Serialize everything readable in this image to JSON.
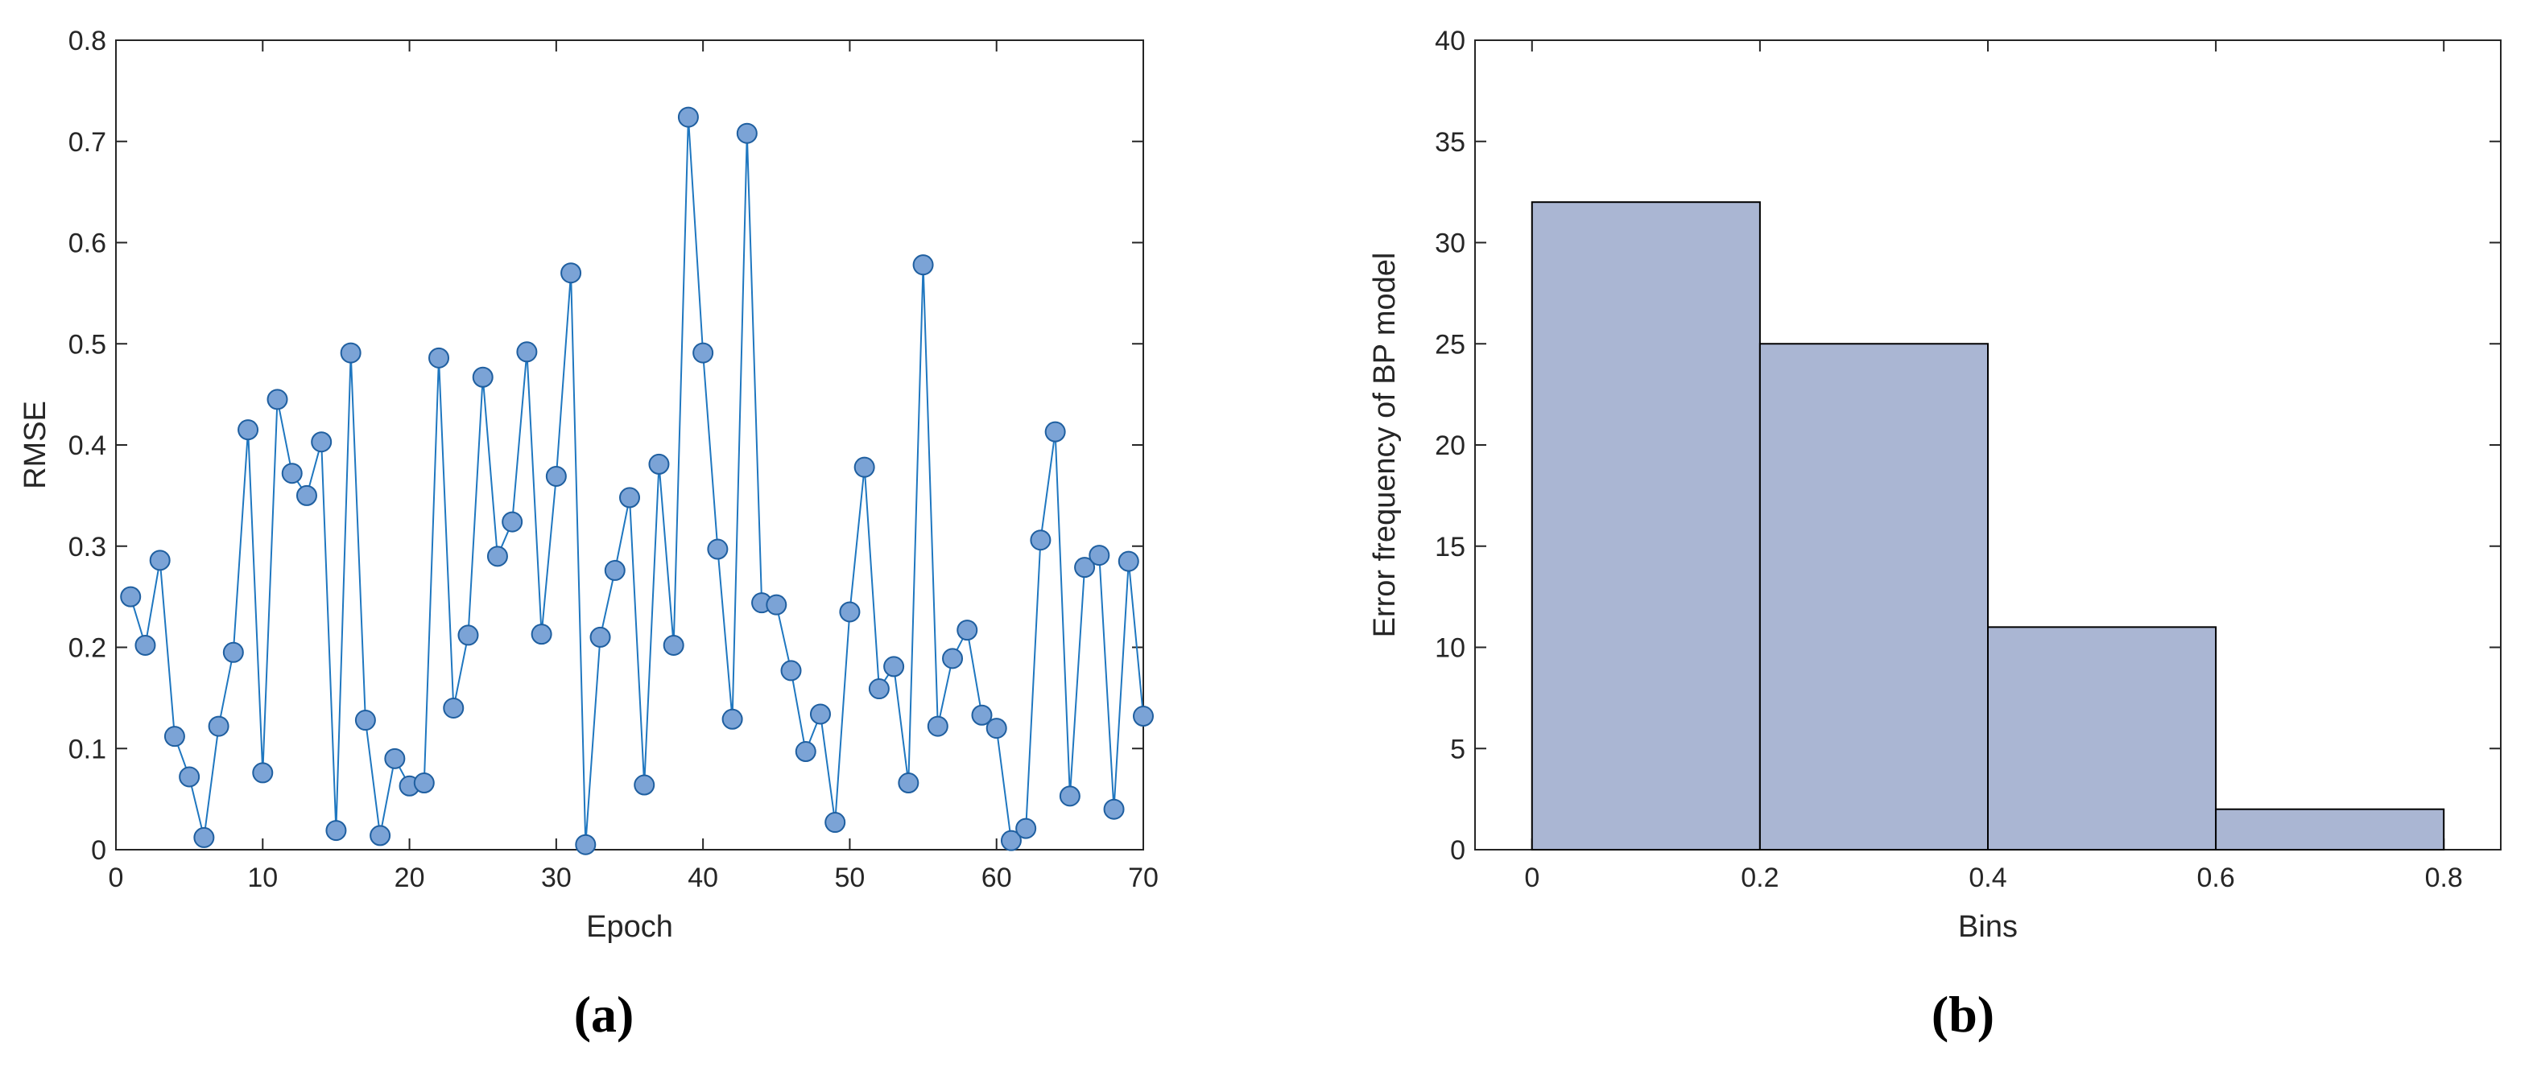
{
  "colors": {
    "line": "#1f77c0",
    "marker_fill": "#7ba3d6",
    "marker_edge": "#1f5fa0",
    "bar_fill": "#aab6d3",
    "bar_edge": "#000000",
    "axis": "#262626"
  },
  "panels": {
    "a_label": "(a)",
    "b_label": "(b)"
  },
  "chart_data": [
    {
      "type": "line",
      "xlabel": "Epoch",
      "ylabel": "RMSE",
      "xlim": [
        0,
        70
      ],
      "ylim": [
        0,
        0.8
      ],
      "xticks": [
        0,
        10,
        20,
        30,
        40,
        50,
        60,
        70
      ],
      "xtick_labels": [
        "0",
        "10",
        "20",
        "30",
        "40",
        "50",
        "60",
        "70"
      ],
      "yticks": [
        0,
        0.1,
        0.2,
        0.3,
        0.4,
        0.5,
        0.6,
        0.7,
        0.8
      ],
      "ytick_labels": [
        "0",
        "0.1",
        "0.2",
        "0.3",
        "0.4",
        "0.5",
        "0.6",
        "0.7",
        "0.8"
      ],
      "grid": false,
      "markers": "circle",
      "x": [
        1,
        2,
        3,
        4,
        5,
        6,
        7,
        8,
        9,
        10,
        11,
        12,
        13,
        14,
        15,
        16,
        17,
        18,
        19,
        20,
        21,
        22,
        23,
        24,
        25,
        26,
        27,
        28,
        29,
        30,
        31,
        32,
        33,
        34,
        35,
        36,
        37,
        38,
        39,
        40,
        41,
        42,
        43,
        44,
        45,
        46,
        47,
        48,
        49,
        50,
        51,
        52,
        53,
        54,
        55,
        56,
        57,
        58,
        59,
        60,
        61,
        62,
        63,
        64,
        65,
        66,
        67,
        68,
        69,
        70
      ],
      "y": [
        0.25,
        0.202,
        0.286,
        0.112,
        0.072,
        0.012,
        0.122,
        0.195,
        0.415,
        0.076,
        0.445,
        0.372,
        0.35,
        0.403,
        0.019,
        0.491,
        0.128,
        0.014,
        0.09,
        0.063,
        0.066,
        0.486,
        0.14,
        0.212,
        0.467,
        0.29,
        0.324,
        0.492,
        0.213,
        0.369,
        0.57,
        0.005,
        0.21,
        0.276,
        0.348,
        0.064,
        0.381,
        0.202,
        0.724,
        0.491,
        0.297,
        0.129,
        0.708,
        0.244,
        0.242,
        0.177,
        0.097,
        0.134,
        0.027,
        0.235,
        0.378,
        0.159,
        0.181,
        0.066,
        0.578,
        0.122,
        0.189,
        0.217,
        0.133,
        0.12,
        0.009,
        0.021,
        0.306,
        0.413,
        0.053,
        0.279,
        0.291,
        0.04,
        0.285,
        0.132
      ]
    },
    {
      "type": "bar",
      "xlabel": "Bins",
      "ylabel": "Error frequency of BP model",
      "xlim": [
        -0.05,
        0.85
      ],
      "ylim": [
        0,
        40
      ],
      "xticks": [
        0,
        0.2,
        0.4,
        0.6,
        0.8
      ],
      "xtick_labels": [
        "0",
        "0.2",
        "0.4",
        "0.6",
        "0.8"
      ],
      "yticks": [
        0,
        5,
        10,
        15,
        20,
        25,
        30,
        35,
        40
      ],
      "ytick_labels": [
        "0",
        "5",
        "10",
        "15",
        "20",
        "25",
        "30",
        "35",
        "40"
      ],
      "grid": false,
      "bin_edges": [
        0,
        0.2,
        0.4,
        0.6,
        0.8
      ],
      "values": [
        32,
        25,
        11,
        2
      ]
    }
  ]
}
